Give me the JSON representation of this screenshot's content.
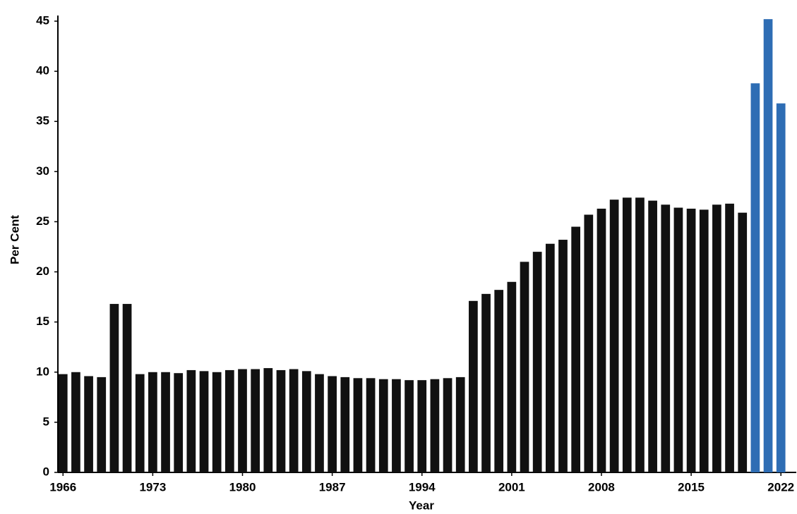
{
  "chart_data": {
    "type": "bar",
    "x_label": "Year",
    "y_label": "Per Cent",
    "x": [
      1966,
      1967,
      1968,
      1969,
      1970,
      1971,
      1972,
      1973,
      1974,
      1975,
      1976,
      1977,
      1978,
      1979,
      1980,
      1981,
      1982,
      1983,
      1984,
      1985,
      1986,
      1987,
      1988,
      1989,
      1990,
      1991,
      1992,
      1993,
      1994,
      1995,
      1996,
      1997,
      1998,
      1999,
      2000,
      2001,
      2002,
      2003,
      2004,
      2005,
      2006,
      2007,
      2008,
      2009,
      2010,
      2011,
      2012,
      2013,
      2014,
      2015,
      2016,
      2017,
      2018,
      2019,
      2020,
      2021,
      2022
    ],
    "values": [
      9.8,
      10,
      9.6,
      9.5,
      16.8,
      16.8,
      9.8,
      10,
      10,
      9.9,
      10.2,
      10.1,
      10,
      10.2,
      10.3,
      10.3,
      10.4,
      10.2,
      10.3,
      10.1,
      9.8,
      9.6,
      9.5,
      9.4,
      9.4,
      9.3,
      9.3,
      9.2,
      9.2,
      9.3,
      9.4,
      9.5,
      17.1,
      17.8,
      18.2,
      19,
      21,
      22,
      22.8,
      23.2,
      24.5,
      25.7,
      26.3,
      27.2,
      27.4,
      27.4,
      27.1,
      26.7,
      26.4,
      26.3,
      26.2,
      26.7,
      26.8,
      25.9,
      38.8,
      45.2,
      36.8
    ],
    "colors": [
      "#111111",
      "#111111",
      "#111111",
      "#111111",
      "#111111",
      "#111111",
      "#111111",
      "#111111",
      "#111111",
      "#111111",
      "#111111",
      "#111111",
      "#111111",
      "#111111",
      "#111111",
      "#111111",
      "#111111",
      "#111111",
      "#111111",
      "#111111",
      "#111111",
      "#111111",
      "#111111",
      "#111111",
      "#111111",
      "#111111",
      "#111111",
      "#111111",
      "#111111",
      "#111111",
      "#111111",
      "#111111",
      "#111111",
      "#111111",
      "#111111",
      "#111111",
      "#111111",
      "#111111",
      "#111111",
      "#111111",
      "#111111",
      "#111111",
      "#111111",
      "#111111",
      "#111111",
      "#111111",
      "#111111",
      "#111111",
      "#111111",
      "#111111",
      "#111111",
      "#111111",
      "#111111",
      "#111111",
      "#2e6db4",
      "#2e6db4",
      "#2e6db4"
    ],
    "xlim": [
      1965.6,
      2023.2
    ],
    "xticks": [
      1966,
      1973,
      1980,
      1987,
      1994,
      2001,
      2008,
      2015,
      2022
    ],
    "ylim": [
      0,
      45
    ],
    "yticks": [
      0,
      5,
      10,
      15,
      20,
      25,
      30,
      35,
      40,
      45
    ]
  }
}
